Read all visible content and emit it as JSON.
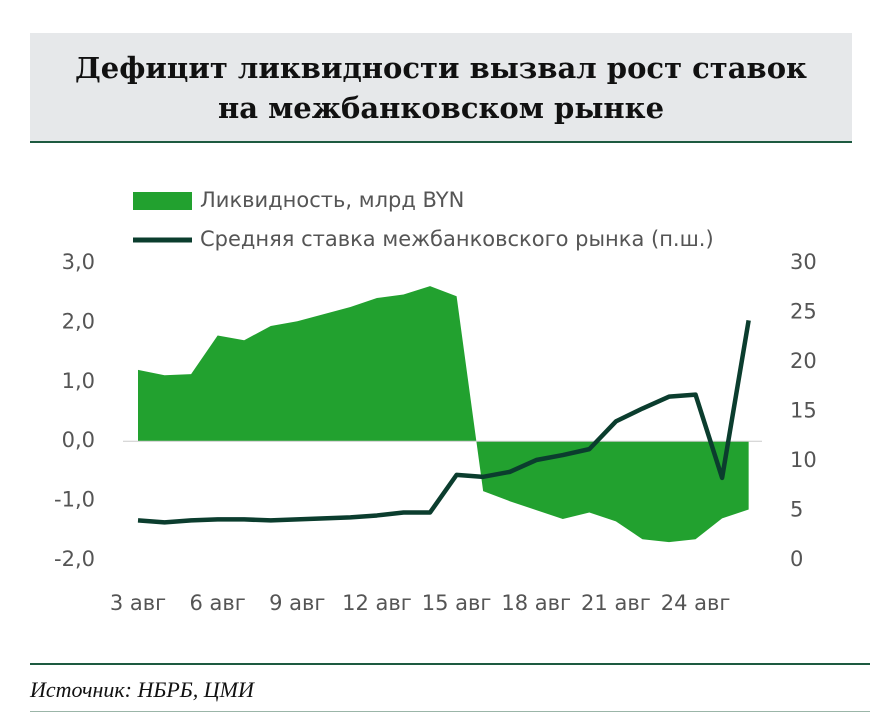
{
  "title": [
    "Дефицит ликвидности вызвал рост ставок",
    "на межбанковском рынке"
  ],
  "source": "Источник: НБРБ, ЦМИ",
  "chart_data": {
    "type": "combo",
    "categories": [
      "3 авг",
      null,
      null,
      "6 авг",
      null,
      null,
      "9 авг",
      null,
      null,
      "12 авг",
      null,
      null,
      "15 авг",
      null,
      null,
      "18 авг",
      null,
      null,
      "21 авг",
      null,
      null,
      "24 авг",
      null,
      null
    ],
    "series": [
      {
        "name": "Ликвидность, млрд BYN",
        "type": "area",
        "color": "#22a12f",
        "values": [
          1.2,
          1.11,
          1.13,
          1.78,
          1.7,
          1.94,
          2.02,
          2.14,
          2.26,
          2.41,
          2.47,
          2.61,
          2.44,
          -0.84,
          -1.01,
          -1.16,
          -1.31,
          -1.2,
          -1.35,
          -1.65,
          -1.7,
          -1.65,
          -1.3,
          -1.15
        ]
      },
      {
        "name": "Средняя ставка межбанковского рынка (п.ш.)",
        "type": "line",
        "axis": "y2",
        "color": "#0b3d2e",
        "values": [
          4.0,
          3.8,
          4.0,
          4.1,
          4.1,
          4.0,
          4.1,
          4.2,
          4.3,
          4.5,
          4.8,
          4.8,
          8.6,
          8.4,
          8.9,
          10.1,
          10.6,
          11.2,
          14.0,
          15.3,
          16.5,
          16.7,
          8.3,
          24.2
        ]
      }
    ],
    "ylim": [
      -2,
      3
    ],
    "yticks": [
      {
        "value": -2,
        "label": "-2,0"
      },
      {
        "value": -1,
        "label": "-1,0"
      },
      {
        "value": 0,
        "label": "0,0"
      },
      {
        "value": 1,
        "label": "1,0"
      },
      {
        "value": 2,
        "label": "2,0"
      },
      {
        "value": 3,
        "label": "3,0"
      }
    ],
    "y2lim": [
      0,
      30
    ],
    "y2ticks": [
      0,
      5,
      10,
      15,
      20,
      25,
      30
    ]
  }
}
